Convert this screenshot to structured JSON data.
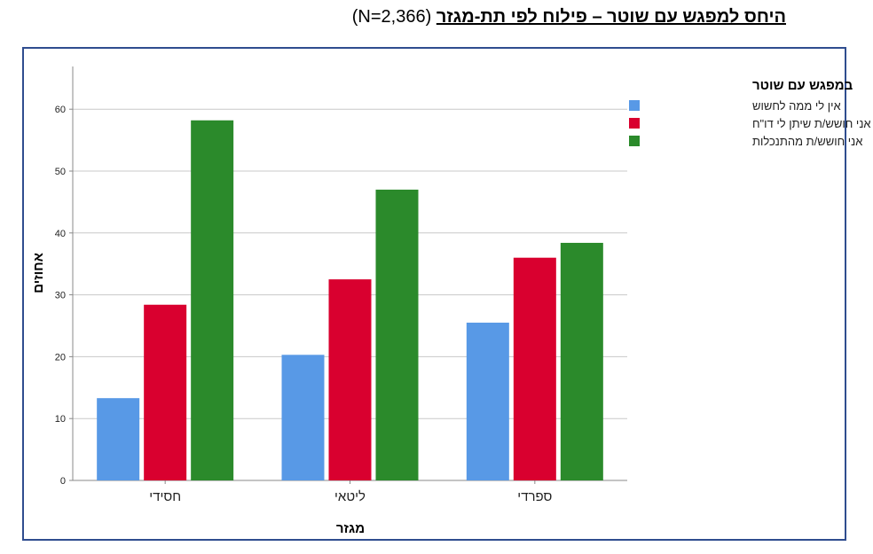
{
  "title": {
    "main": "היחס למפגש עם שוטר – פילוח לפי תת-מגזר",
    "suffix": "(N=2,366)"
  },
  "chart_data": {
    "type": "bar",
    "categories": [
      "חסידי",
      "ליטאי",
      "ספרדי"
    ],
    "xlabel": "מגזר",
    "ylabel": "אחוזים",
    "ylim": [
      0,
      65
    ],
    "yticks": [
      0,
      10,
      20,
      30,
      40,
      50,
      60
    ],
    "grid": true,
    "legend_placement": "right",
    "legend_title": "במפגש עם שוטר",
    "series": [
      {
        "name": "אין לי ממה לחשוש",
        "color": "#5899e6",
        "values": [
          13.3,
          20.3,
          25.5
        ]
      },
      {
        "name": "אני חושש/ת שיתן לי דו\"ח",
        "color": "#d9002f",
        "values": [
          28.4,
          32.5,
          36.0
        ]
      },
      {
        "name": "אני חושש/ת מהתנכלות",
        "color": "#2b8a2b",
        "values": [
          58.2,
          47.0,
          38.4
        ]
      }
    ]
  }
}
